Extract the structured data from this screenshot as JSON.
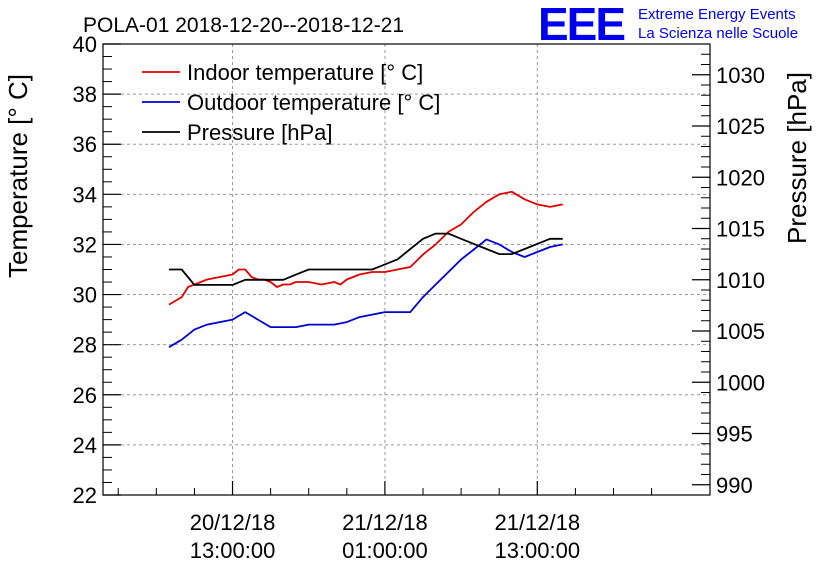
{
  "chart_data": {
    "type": "line",
    "title": "POLA-01 2018-12-20--2018-12-21",
    "ylabel_left": "Temperature [° C]",
    "ylabel_right": "Pressure [hPa]",
    "ylim_left": [
      22,
      40
    ],
    "ylim_right": [
      989,
      1033
    ],
    "yticks_left": [
      "22",
      "24",
      "26",
      "28",
      "30",
      "32",
      "34",
      "36",
      "38",
      "40"
    ],
    "yticks_right": [
      "990",
      "995",
      "1000",
      "1005",
      "1010",
      "1015",
      "1020",
      "1025",
      "1030"
    ],
    "xlim": [
      -10.2,
      37.6
    ],
    "xticks": [
      {
        "hour": 0,
        "date": "20/12/18",
        "time": "13:00:00"
      },
      {
        "hour": 12,
        "date": "21/12/18",
        "time": "01:00:00"
      },
      {
        "hour": 24,
        "date": "21/12/18",
        "time": "13:00:00"
      }
    ],
    "grid": true,
    "legend_position": "top-left",
    "series": [
      {
        "name": "Indoor temperature [° C]",
        "color": "#e00000",
        "axis": "left",
        "x": [
          -5,
          -4,
          -3.5,
          -3,
          -2.5,
          -2,
          -1,
          0,
          0.5,
          1,
          1.5,
          2,
          2.5,
          3,
          3.5,
          4,
          4.5,
          5,
          6,
          7,
          8,
          8.5,
          9,
          10,
          11,
          12,
          13,
          14,
          15,
          16,
          17,
          18,
          19,
          20,
          21,
          22,
          23,
          24,
          25,
          26
        ],
        "values": [
          29.6,
          29.9,
          30.3,
          30.4,
          30.5,
          30.6,
          30.7,
          30.8,
          31.0,
          31.0,
          30.7,
          30.6,
          30.6,
          30.5,
          30.3,
          30.4,
          30.4,
          30.5,
          30.5,
          30.4,
          30.5,
          30.4,
          30.6,
          30.8,
          30.9,
          30.9,
          31.0,
          31.1,
          31.6,
          32.0,
          32.5,
          32.8,
          33.3,
          33.7,
          34.0,
          34.1,
          33.8,
          33.6,
          33.5,
          33.6
        ]
      },
      {
        "name": "Outdoor temperature [° C]",
        "color": "#0000d0",
        "axis": "left",
        "x": [
          -5,
          -4,
          -3,
          -2,
          -1,
          0,
          1,
          2,
          3,
          4,
          5,
          6,
          7,
          8,
          9,
          10,
          11,
          12,
          13,
          14,
          15,
          16,
          17,
          18,
          19,
          20,
          21,
          22,
          23,
          24,
          25,
          26
        ],
        "values": [
          27.9,
          28.2,
          28.6,
          28.8,
          28.9,
          29.0,
          29.3,
          29.0,
          28.7,
          28.7,
          28.7,
          28.8,
          28.8,
          28.8,
          28.9,
          29.1,
          29.2,
          29.3,
          29.3,
          29.3,
          29.9,
          30.4,
          30.9,
          31.4,
          31.8,
          32.2,
          32.0,
          31.7,
          31.5,
          31.7,
          31.9,
          32.0
        ]
      },
      {
        "name": "Pressure [hPa]",
        "color": "#000000",
        "axis": "right",
        "x": [
          -5,
          -4,
          -3,
          -2,
          -1,
          0,
          1,
          2,
          3,
          4,
          5,
          6,
          7,
          8,
          9,
          10,
          11,
          12,
          13,
          14,
          15,
          16,
          17,
          18,
          19,
          20,
          21,
          22,
          23,
          24,
          25,
          26
        ],
        "values": [
          1011,
          1011,
          1009.5,
          1009.5,
          1009.5,
          1009.5,
          1010,
          1010,
          1010,
          1010,
          1010.5,
          1011,
          1011,
          1011,
          1011,
          1011,
          1011,
          1011.5,
          1012,
          1013,
          1014,
          1014.5,
          1014.5,
          1014,
          1013.5,
          1013,
          1012.5,
          1012.5,
          1013,
          1013.5,
          1014,
          1014
        ]
      }
    ]
  },
  "logo": {
    "text": "EEE",
    "line1": "Extreme Energy Events",
    "line2": "La Scienza nelle Scuole",
    "color": "#0000ee"
  }
}
